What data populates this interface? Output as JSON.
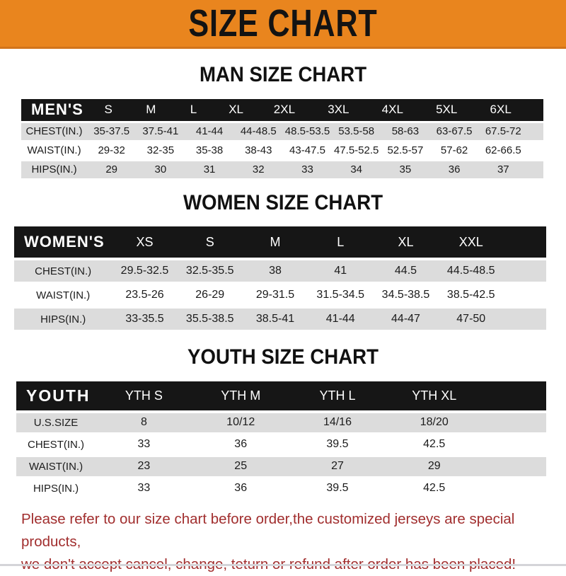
{
  "banner": {
    "title": "SIZE CHART"
  },
  "sections": {
    "men": {
      "heading": "MAN SIZE CHART",
      "header_label": "MEN'S",
      "columns": [
        "S",
        "M",
        "L",
        "XL",
        "2XL",
        "3XL",
        "4XL",
        "5XL",
        "6XL"
      ],
      "rows": [
        {
          "label": "CHEST(IN.)",
          "values": [
            "35-37.5",
            "37.5-41",
            "41-44",
            "44-48.5",
            "48.5-53.5",
            "53.5-58",
            "58-63",
            "63-67.5",
            "67.5-72"
          ]
        },
        {
          "label": "WAIST(IN.)",
          "values": [
            "29-32",
            "32-35",
            "35-38",
            "38-43",
            "43-47.5",
            "47.5-52.5",
            "52.5-57",
            "57-62",
            "62-66.5"
          ]
        },
        {
          "label": "HIPS(IN.)",
          "values": [
            "29",
            "30",
            "31",
            "32",
            "33",
            "34",
            "35",
            "36",
            "37"
          ]
        }
      ]
    },
    "women": {
      "heading": "WOMEN SIZE CHART",
      "header_label": "WOMEN'S",
      "columns": [
        "XS",
        "S",
        "M",
        "L",
        "XL",
        "XXL"
      ],
      "rows": [
        {
          "label": "CHEST(IN.)",
          "values": [
            "29.5-32.5",
            "32.5-35.5",
            "38",
            "41",
            "44.5",
            "44.5-48.5"
          ]
        },
        {
          "label": "WAIST(IN.)",
          "values": [
            "23.5-26",
            "26-29",
            "29-31.5",
            "31.5-34.5",
            "34.5-38.5",
            "38.5-42.5"
          ]
        },
        {
          "label": "HIPS(IN.)",
          "values": [
            "33-35.5",
            "35.5-38.5",
            "38.5-41",
            "41-44",
            "44-47",
            "47-50"
          ]
        }
      ]
    },
    "youth": {
      "heading": "YOUTH SIZE CHART",
      "header_label": "YOUTH",
      "columns": [
        "YTH S",
        "YTH M",
        "YTH L",
        "YTH XL"
      ],
      "rows": [
        {
          "label": "U.S.SIZE",
          "values": [
            "8",
            "10/12",
            "14/16",
            "18/20"
          ]
        },
        {
          "label": "CHEST(IN.)",
          "values": [
            "33",
            "36",
            "39.5",
            "42.5"
          ]
        },
        {
          "label": "WAIST(IN.)",
          "values": [
            "23",
            "25",
            "27",
            "29"
          ]
        },
        {
          "label": "HIPS(IN.)",
          "values": [
            "33",
            "36",
            "39.5",
            "42.5"
          ]
        }
      ]
    }
  },
  "footer": {
    "line1": "Please refer to our size chart before order,the customized jerseys are special products,",
    "line2": "we don't accept cancel, change, teturn or refund after order has been placed!"
  },
  "colors": {
    "banner_bg": "#E9851E",
    "banner_text": "#131313",
    "header_bar_bg": "#161616",
    "header_bar_text": "#FFFFFF",
    "row_gray": "#DCDCDC",
    "footer_red": "#A12E2E"
  }
}
